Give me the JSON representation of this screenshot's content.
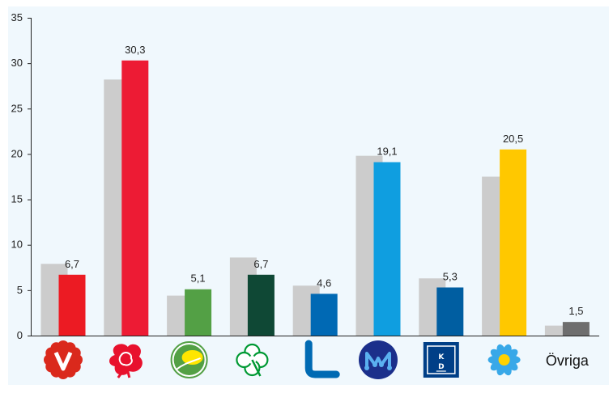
{
  "chart_data": {
    "type": "bar",
    "title": "",
    "xlabel": "",
    "ylabel": "",
    "ylim": [
      0,
      35
    ],
    "yticks": [
      0,
      5,
      10,
      15,
      20,
      25,
      30,
      35
    ],
    "grid": false,
    "categories": [
      "V",
      "S",
      "MP",
      "C",
      "L",
      "M",
      "KD",
      "SD",
      "Övriga"
    ],
    "category_logos": [
      "v-party-logo-icon",
      "s-party-rose-logo-icon",
      "mp-dandelion-logo-icon",
      "c-clover-logo-icon",
      "l-party-logo-icon",
      "m-party-logo-icon",
      "kd-party-logo-icon",
      "sd-flower-logo-icon",
      null
    ],
    "category_text": [
      "",
      "",
      "",
      "",
      "",
      "",
      "",
      "",
      "Övriga"
    ],
    "series": [
      {
        "values": [
          7.9,
          28.2,
          4.4,
          8.6,
          5.5,
          19.8,
          6.3,
          17.5,
          1.1
        ],
        "color": "#cccccc"
      },
      {
        "values": [
          6.7,
          30.3,
          5.1,
          6.7,
          4.6,
          19.1,
          5.3,
          20.5,
          1.5
        ],
        "labels": [
          "6,7",
          "30,3",
          "5,1",
          "6,7",
          "4,6",
          "19,1",
          "5,3",
          "20,5",
          "1,5"
        ],
        "colors": [
          "#ec1b23",
          "#ed1b34",
          "#53a045",
          "#0f4835",
          "#0069b4",
          "#0f9ee0",
          "#005ea1",
          "#ffc800",
          "#6e6e6e"
        ]
      }
    ]
  },
  "plot_bg": "#f0f8fd"
}
